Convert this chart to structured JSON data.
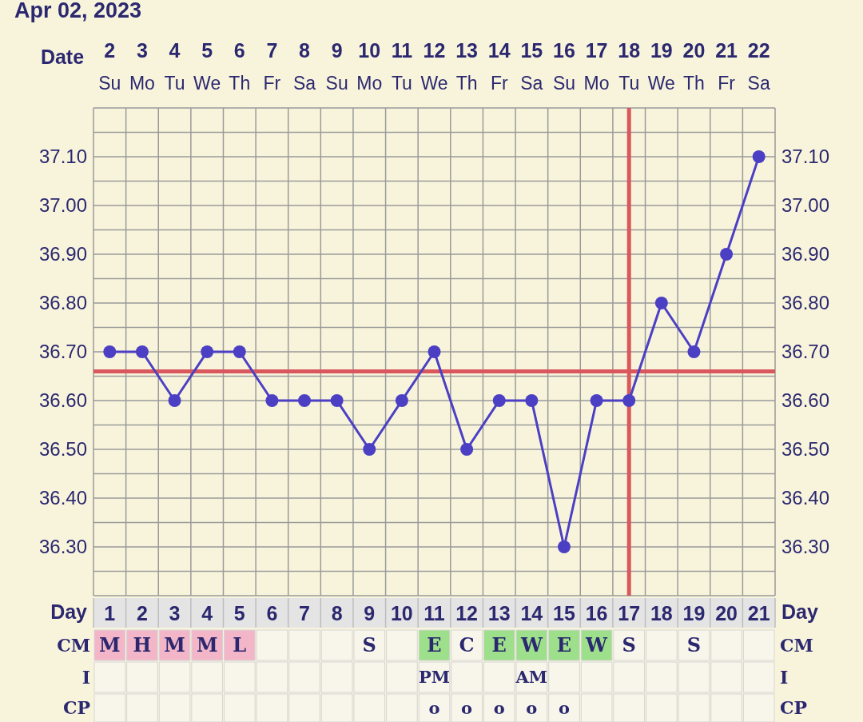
{
  "chart_data": [
    {
      "type": "line",
      "title": "Apr 02, 2023",
      "xlabel": "Date",
      "x": [
        2,
        3,
        4,
        5,
        6,
        7,
        8,
        9,
        10,
        11,
        12,
        13,
        14,
        15,
        16,
        17,
        18,
        19,
        20,
        21,
        22
      ],
      "series": [
        {
          "color": "#4b3fc4",
          "values": [
            36.7,
            36.7,
            36.6,
            36.7,
            36.7,
            36.6,
            36.6,
            36.6,
            36.5,
            36.6,
            36.7,
            36.5,
            36.6,
            36.6,
            36.3,
            36.6,
            36.6,
            36.8,
            36.7,
            36.9,
            37.1
          ]
        }
      ],
      "xlim": [
        1.5,
        22.5
      ],
      "xticks": [
        2,
        3,
        4,
        5,
        6,
        7,
        8,
        9,
        10,
        11,
        12,
        13,
        14,
        15,
        16,
        17,
        18,
        19,
        20,
        21,
        22
      ],
      "annotations": [
        "Su",
        "Mo",
        "Tu",
        "We",
        "Th",
        "Fr",
        "Sa",
        "Su",
        "Mo",
        "Tu",
        "We",
        "Th",
        "Fr",
        "Sa",
        "Su",
        "Mo",
        "Tu",
        "We",
        "Th",
        "Fr",
        "Sa"
      ],
      "ylim": [
        36.2,
        37.2
      ],
      "yticks": [
        {
          "value": 36.2,
          "label": null
        },
        {
          "value": 36.25,
          "label": null
        },
        {
          "value": 36.3,
          "label": "36.30"
        },
        {
          "value": 36.35,
          "label": null
        },
        {
          "value": 36.4,
          "label": "36.40"
        },
        {
          "value": 36.45,
          "label": null
        },
        {
          "value": 36.5,
          "label": "36.50"
        },
        {
          "value": 36.55,
          "label": null
        },
        {
          "value": 36.6,
          "label": "36.60"
        },
        {
          "value": 36.65,
          "label": null
        },
        {
          "value": 36.7,
          "label": "36.70"
        },
        {
          "value": 36.75,
          "label": null
        },
        {
          "value": 36.8,
          "label": "36.80"
        },
        {
          "value": 36.85,
          "label": null
        },
        {
          "value": 36.9,
          "label": "36.90"
        },
        {
          "value": 36.95,
          "label": null
        },
        {
          "value": 37.0,
          "label": "37.00"
        },
        {
          "value": 37.05,
          "label": null
        },
        {
          "value": 37.1,
          "label": "37.10"
        },
        {
          "value": 37.15,
          "label": null
        },
        {
          "value": 37.2,
          "label": null
        }
      ],
      "y2lim": [
        36.2,
        37.2
      ],
      "y2ticks": [
        {
          "value": 36.3,
          "label": "36.30"
        },
        {
          "value": 36.4,
          "label": "36.40"
        },
        {
          "value": 36.5,
          "label": "36.50"
        },
        {
          "value": 36.6,
          "label": "36.60"
        },
        {
          "value": 36.7,
          "label": "36.70"
        },
        {
          "value": 36.8,
          "label": "36.80"
        },
        {
          "value": 36.9,
          "label": "36.90"
        },
        {
          "value": 37.0,
          "label": "37.00"
        },
        {
          "value": 37.1,
          "label": "37.10"
        }
      ],
      "ref_lines": [
        {
          "axis": "y",
          "value": 36.66,
          "color": "#d9585e"
        },
        {
          "axis": "x",
          "value": 18,
          "color": "#d9585e"
        }
      ],
      "grid": true,
      "marker": "circle",
      "line_style": "solid"
    },
    {
      "type": "heatmap",
      "xlabel": "Day",
      "categories": [
        "1",
        "2",
        "3",
        "4",
        "5",
        "6",
        "7",
        "8",
        "9",
        "10",
        "11",
        "12",
        "13",
        "14",
        "15",
        "16",
        "17",
        "18",
        "19",
        "20",
        "21"
      ],
      "y_categories": [
        "CM",
        "I",
        "CP"
      ],
      "y2_categories": [
        "CM",
        "I",
        "CP"
      ],
      "cells": [
        [
          "M",
          "H",
          "M",
          "M",
          "L",
          null,
          null,
          null,
          "S",
          null,
          "E",
          "C",
          "E",
          "W",
          "E",
          "W",
          "S",
          null,
          "S",
          null,
          null
        ],
        [
          null,
          null,
          null,
          null,
          null,
          null,
          null,
          null,
          null,
          null,
          "PM",
          null,
          null,
          "AM",
          null,
          null,
          null,
          null,
          null,
          null,
          null
        ],
        [
          null,
          null,
          null,
          null,
          null,
          null,
          null,
          null,
          null,
          null,
          "o",
          "o",
          "o",
          "o",
          "o",
          null,
          null,
          null,
          null,
          null,
          null
        ]
      ],
      "colors": [
        [
          "#f2b6c8",
          "#f2b6c8",
          "#f2b6c8",
          "#f2b6c8",
          "#f2b6c8",
          null,
          null,
          null,
          null,
          null,
          "#9ddf8a",
          null,
          "#9ddf8a",
          "#9ddf8a",
          "#9ddf8a",
          "#9ddf8a",
          null,
          null,
          null,
          null,
          null
        ]
      ]
    }
  ]
}
